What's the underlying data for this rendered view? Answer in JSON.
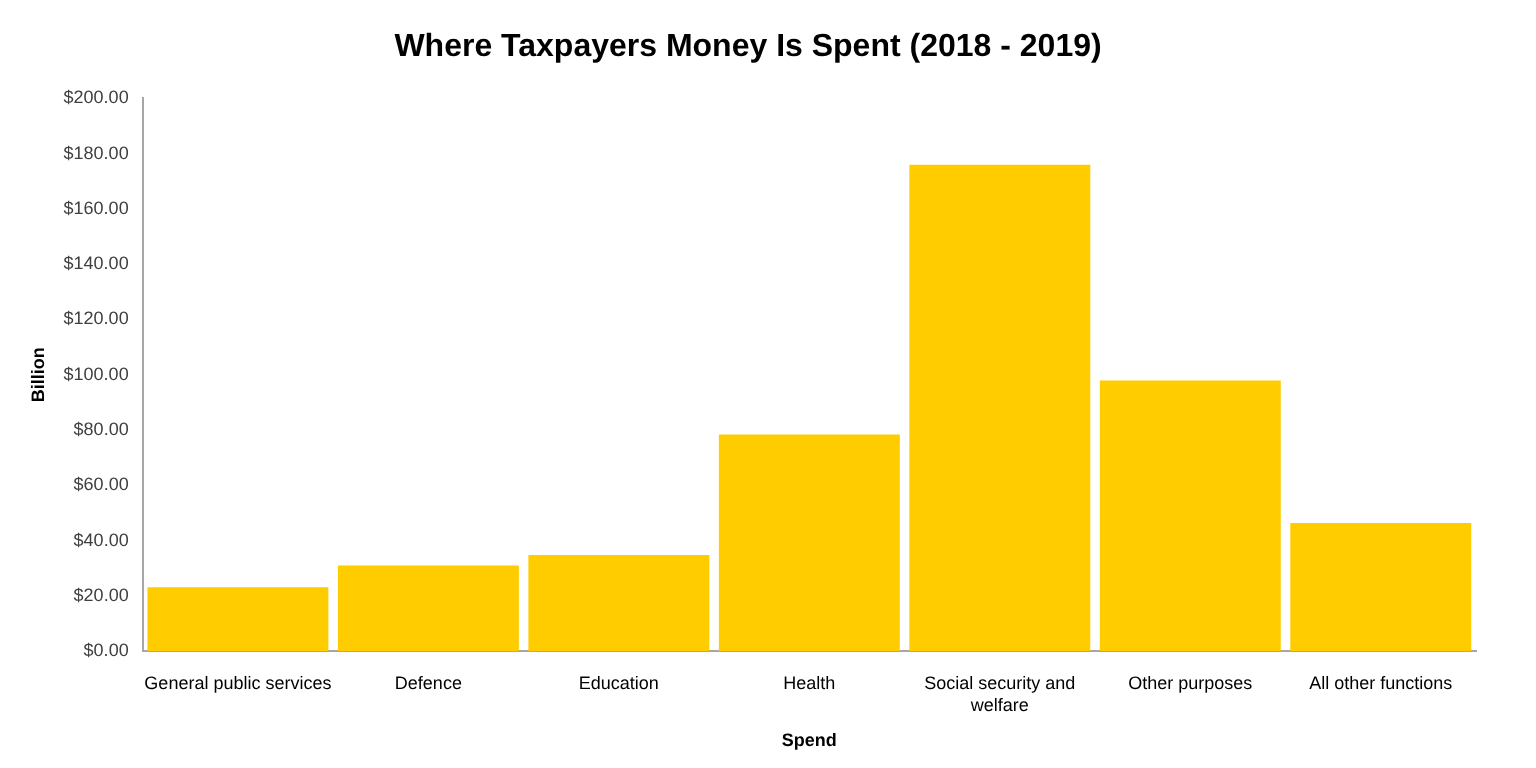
{
  "chart_data": {
    "type": "bar",
    "title": "Where Taxpayers Money Is Spent (2018 - 2019)",
    "xlabel": "Spend",
    "ylabel": "Billion",
    "categories": [
      "General public services",
      "Defence",
      "Education",
      "Health",
      "Social security and welfare",
      "Other purposes",
      "All other functions"
    ],
    "values": [
      23.1,
      31,
      34.8,
      78.4,
      176,
      97.9,
      46.4
    ],
    "color": "#ffcc00",
    "ylim": [
      0,
      200
    ],
    "yticks": [
      {
        "value": 0,
        "label": "$0.00"
      },
      {
        "value": 20,
        "label": "$20.00"
      },
      {
        "value": 40,
        "label": "$40.00"
      },
      {
        "value": 60,
        "label": "$60.00"
      },
      {
        "value": 80,
        "label": "$80.00"
      },
      {
        "value": 100,
        "label": "$100.00"
      },
      {
        "value": 120,
        "label": "$120.00"
      },
      {
        "value": 140,
        "label": "$140.00"
      },
      {
        "value": 160,
        "label": "$160.00"
      },
      {
        "value": 180,
        "label": "$180.00"
      },
      {
        "value": 200,
        "label": "$200.00"
      }
    ],
    "grid": false
  }
}
